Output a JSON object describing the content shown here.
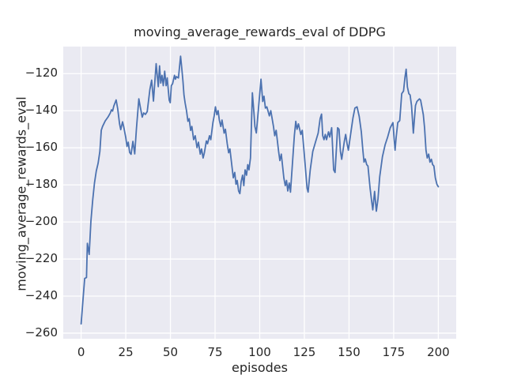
{
  "chart_data": {
    "type": "line",
    "title": "moving_average_rewards_eval of DDPG",
    "xlabel": "episodes",
    "ylabel": "moving_average_rewards_eval",
    "xlim": [
      -10,
      210
    ],
    "ylim": [
      -263,
      -105.4
    ],
    "xticks": [
      0,
      25,
      50,
      75,
      100,
      125,
      150,
      175,
      200
    ],
    "yticks": [
      -260,
      -240,
      -220,
      -200,
      -180,
      -160,
      -140,
      -120
    ],
    "grid": true,
    "legend_position": "none",
    "style": "seaborn-darkgrid",
    "colors": {
      "figure_background": "#ffffff",
      "axes_background": "#EAEAF2",
      "gridline": "#ffffff",
      "line": "#4C72B0",
      "text": "#262626"
    },
    "series": [
      {
        "name": "moving_average_rewards_eval",
        "points": [
          [
            0,
            -255
          ],
          [
            1,
            -243
          ],
          [
            2,
            -230.5
          ],
          [
            3,
            -230
          ],
          [
            3.5,
            -211.5
          ],
          [
            4.5,
            -217.5
          ],
          [
            5.5,
            -199.5
          ],
          [
            6.5,
            -188
          ],
          [
            7.5,
            -179
          ],
          [
            8.5,
            -172.5
          ],
          [
            9.5,
            -168.3
          ],
          [
            10.5,
            -162
          ],
          [
            11.3,
            -150.5
          ],
          [
            12,
            -148.5
          ],
          [
            13.5,
            -145.5
          ],
          [
            15,
            -143.5
          ],
          [
            16.3,
            -141.3
          ],
          [
            17,
            -139.5
          ],
          [
            17.6,
            -140.2
          ],
          [
            18.3,
            -137.5
          ],
          [
            19.6,
            -134.2
          ],
          [
            20.5,
            -139
          ],
          [
            21.5,
            -147
          ],
          [
            22.2,
            -150.2
          ],
          [
            23.2,
            -146
          ],
          [
            23.8,
            -148.5
          ],
          [
            25,
            -154.5
          ],
          [
            25.7,
            -159.3
          ],
          [
            26.4,
            -157
          ],
          [
            27.2,
            -162.5
          ],
          [
            28,
            -163.5
          ],
          [
            29,
            -156.5
          ],
          [
            30,
            -163.3
          ],
          [
            31,
            -149.5
          ],
          [
            32.3,
            -133.6
          ],
          [
            33.3,
            -138.8
          ],
          [
            34.2,
            -143.5
          ],
          [
            35,
            -141.2
          ],
          [
            36,
            -142
          ],
          [
            37,
            -140.5
          ],
          [
            38.5,
            -128.5
          ],
          [
            39.5,
            -123.5
          ],
          [
            40.5,
            -134.8
          ],
          [
            42,
            -114.6
          ],
          [
            43.2,
            -127
          ],
          [
            43.9,
            -115.8
          ],
          [
            44.6,
            -125.1
          ],
          [
            45.3,
            -120.9
          ],
          [
            46,
            -126.5
          ],
          [
            46.8,
            -118.7
          ],
          [
            47.6,
            -126.5
          ],
          [
            48.2,
            -122.3
          ],
          [
            49.3,
            -134.3
          ],
          [
            49.9,
            -135.7
          ],
          [
            50.5,
            -126.5
          ],
          [
            51.2,
            -125.4
          ],
          [
            52.3,
            -120.9
          ],
          [
            52.8,
            -123
          ],
          [
            53.4,
            -121.6
          ],
          [
            54.5,
            -122.3
          ],
          [
            55.7,
            -110.6
          ],
          [
            56.3,
            -116.6
          ],
          [
            57,
            -124
          ],
          [
            57.6,
            -131.5
          ],
          [
            58.2,
            -135.7
          ],
          [
            59,
            -140
          ],
          [
            59.8,
            -145.7
          ],
          [
            60.5,
            -144.3
          ],
          [
            61.3,
            -150.6
          ],
          [
            62,
            -148.5
          ],
          [
            63,
            -155.6
          ],
          [
            63.9,
            -153.5
          ],
          [
            64.9,
            -159.9
          ],
          [
            65.7,
            -157
          ],
          [
            66.7,
            -163.4
          ],
          [
            67.4,
            -160.6
          ],
          [
            68.3,
            -165.5
          ],
          [
            69,
            -162.7
          ],
          [
            70.1,
            -156.3
          ],
          [
            70.8,
            -157.8
          ],
          [
            71.9,
            -153.5
          ],
          [
            72.6,
            -155.6
          ],
          [
            73.8,
            -146.4
          ],
          [
            74.5,
            -142.8
          ],
          [
            75.2,
            -137.9
          ],
          [
            76,
            -142.1
          ],
          [
            76.7,
            -140
          ],
          [
            77.4,
            -145
          ],
          [
            78.2,
            -148.5
          ],
          [
            78.9,
            -145
          ],
          [
            80.1,
            -152.1
          ],
          [
            80.8,
            -150
          ],
          [
            81.8,
            -157.8
          ],
          [
            82.6,
            -162.7
          ],
          [
            83.3,
            -160.6
          ],
          [
            84.5,
            -170.5
          ],
          [
            85.2,
            -176.2
          ],
          [
            86,
            -173.3
          ],
          [
            86.7,
            -179.7
          ],
          [
            87.4,
            -177.6
          ],
          [
            88.2,
            -183.3
          ],
          [
            88.9,
            -184.7
          ],
          [
            89.6,
            -178.3
          ],
          [
            90.4,
            -174.8
          ],
          [
            91.1,
            -180.4
          ],
          [
            91.8,
            -171.9
          ],
          [
            92.6,
            -174.8
          ],
          [
            93.3,
            -169.1
          ],
          [
            94,
            -171.9
          ],
          [
            94.8,
            -165.5
          ],
          [
            95.9,
            -130.3
          ],
          [
            96.7,
            -140
          ],
          [
            97.3,
            -148.5
          ],
          [
            98.1,
            -152
          ],
          [
            99.3,
            -139
          ],
          [
            100.7,
            -123
          ],
          [
            101.7,
            -135
          ],
          [
            102.4,
            -132.2
          ],
          [
            103.2,
            -138.6
          ],
          [
            104,
            -137.9
          ],
          [
            105.4,
            -142.8
          ],
          [
            106.2,
            -140
          ],
          [
            107.7,
            -148.5
          ],
          [
            108.4,
            -153.5
          ],
          [
            109.2,
            -150.6
          ],
          [
            110.6,
            -162
          ],
          [
            111.3,
            -166.9
          ],
          [
            112.1,
            -163.4
          ],
          [
            113.5,
            -176.2
          ],
          [
            114.3,
            -180.4
          ],
          [
            115,
            -177.6
          ],
          [
            115.7,
            -183.3
          ],
          [
            116.5,
            -179
          ],
          [
            117.2,
            -183.9
          ],
          [
            118.7,
            -163.4
          ],
          [
            119.4,
            -153.5
          ],
          [
            120.2,
            -145.7
          ],
          [
            120.9,
            -150
          ],
          [
            121.7,
            -147.1
          ],
          [
            123,
            -152.8
          ],
          [
            123.8,
            -150.6
          ],
          [
            125.3,
            -167.7
          ],
          [
            126.5,
            -181.8
          ],
          [
            127.1,
            -183.9
          ],
          [
            128.3,
            -171.9
          ],
          [
            129.7,
            -162
          ],
          [
            131.2,
            -157
          ],
          [
            132.7,
            -152.1
          ],
          [
            133.8,
            -144.3
          ],
          [
            134.6,
            -141.8
          ],
          [
            135.3,
            -153.5
          ],
          [
            136,
            -155.6
          ],
          [
            136.7,
            -152.8
          ],
          [
            137.4,
            -155.6
          ],
          [
            138.5,
            -151.4
          ],
          [
            139.2,
            -154.2
          ],
          [
            140.3,
            -149.2
          ],
          [
            141.4,
            -171.9
          ],
          [
            142.2,
            -173.3
          ],
          [
            143.6,
            -149.2
          ],
          [
            144.4,
            -150
          ],
          [
            145.2,
            -162
          ],
          [
            145.9,
            -166.2
          ],
          [
            147.4,
            -156.3
          ],
          [
            148.1,
            -152.8
          ],
          [
            148.9,
            -157.8
          ],
          [
            149.6,
            -161.3
          ],
          [
            151.1,
            -151.4
          ],
          [
            152.2,
            -144
          ],
          [
            153.3,
            -138.6
          ],
          [
            154.5,
            -137.9
          ],
          [
            155.7,
            -143
          ],
          [
            156.9,
            -151.4
          ],
          [
            157.7,
            -160.6
          ],
          [
            158.4,
            -167.7
          ],
          [
            159.1,
            -166
          ],
          [
            159.9,
            -169.1
          ],
          [
            160.6,
            -169.8
          ],
          [
            161.8,
            -181.8
          ],
          [
            162.5,
            -187.5
          ],
          [
            163.3,
            -193.5
          ],
          [
            164.3,
            -183.5
          ],
          [
            165.3,
            -194.2
          ],
          [
            166.2,
            -187.5
          ],
          [
            167.2,
            -175.5
          ],
          [
            168.7,
            -164.8
          ],
          [
            170.2,
            -158.4
          ],
          [
            171.6,
            -154.2
          ],
          [
            173.1,
            -149.2
          ],
          [
            174.6,
            -146.4
          ],
          [
            175.3,
            -155.6
          ],
          [
            175.8,
            -161.3
          ],
          [
            176.4,
            -154.2
          ],
          [
            177.3,
            -146.4
          ],
          [
            178.4,
            -145.3
          ],
          [
            179.5,
            -130.8
          ],
          [
            180.5,
            -129.4
          ],
          [
            181.3,
            -122
          ],
          [
            182,
            -117.6
          ],
          [
            182.7,
            -127.2
          ],
          [
            183.5,
            -130.8
          ],
          [
            184.2,
            -131.5
          ],
          [
            185,
            -137.2
          ],
          [
            186,
            -152.1
          ],
          [
            187.2,
            -137.2
          ],
          [
            188,
            -135
          ],
          [
            189.4,
            -133.6
          ],
          [
            190.1,
            -134.3
          ],
          [
            190.9,
            -138.6
          ],
          [
            191.6,
            -142.1
          ],
          [
            192.3,
            -149.2
          ],
          [
            193.1,
            -161.3
          ],
          [
            193.8,
            -165.5
          ],
          [
            194.6,
            -163.4
          ],
          [
            195.3,
            -167.7
          ],
          [
            196.1,
            -166.2
          ],
          [
            196.8,
            -169.1
          ],
          [
            197.5,
            -169.8
          ],
          [
            198.3,
            -176.2
          ],
          [
            199.2,
            -179.7
          ],
          [
            200,
            -181
          ]
        ]
      }
    ]
  }
}
